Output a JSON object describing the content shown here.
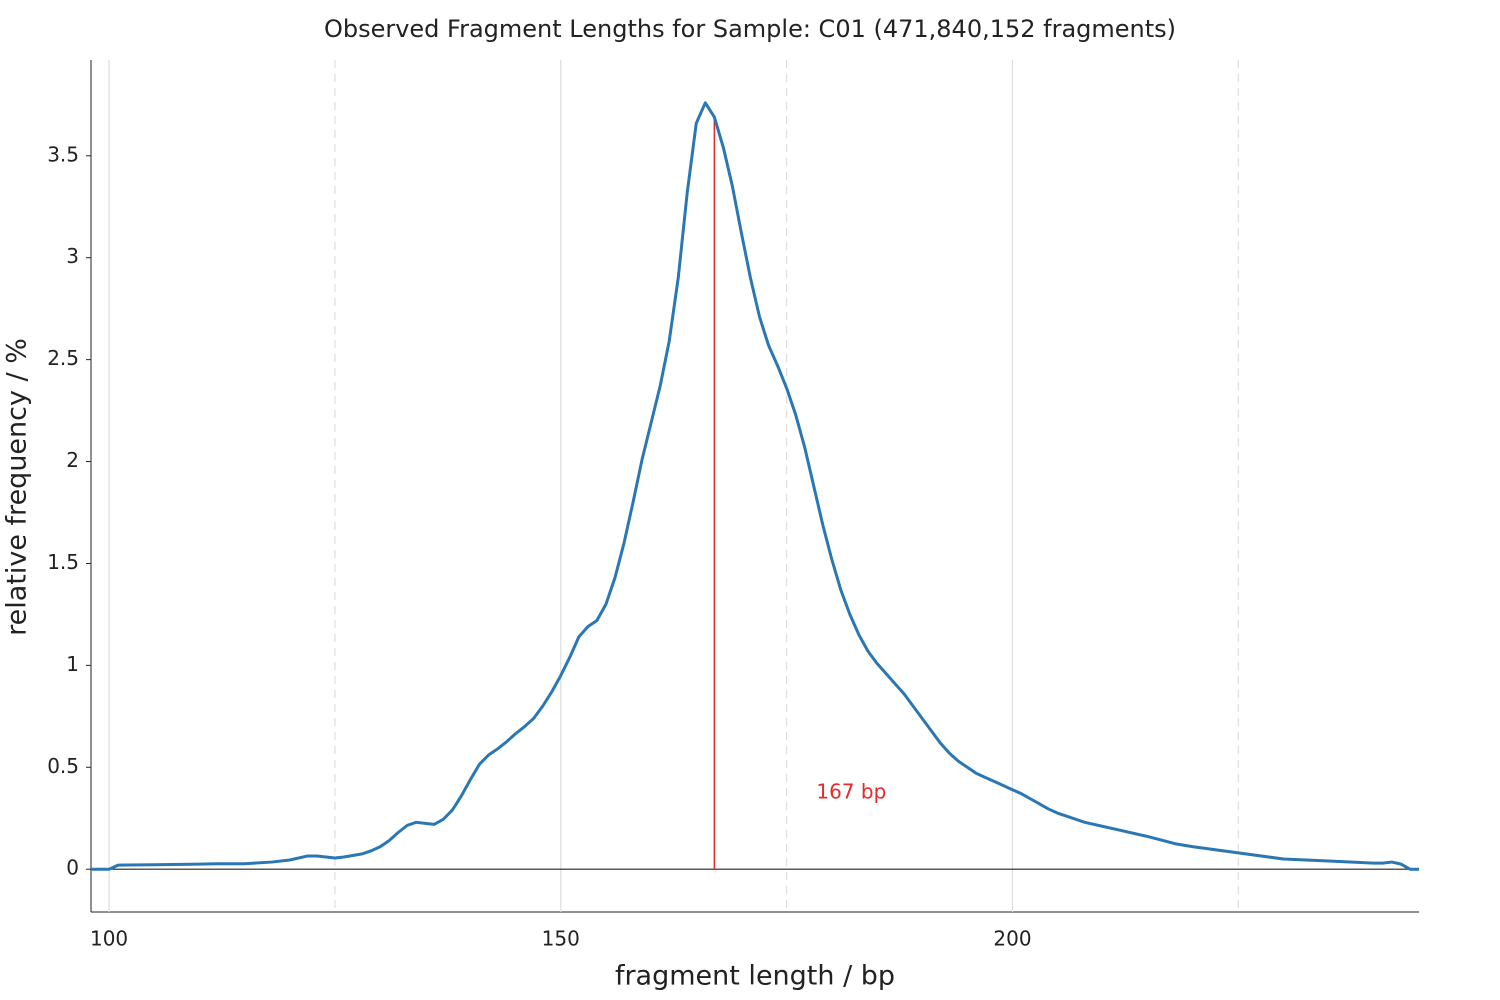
{
  "chart_data": {
    "type": "line",
    "title": "Observed Fragment Lengths for Sample: C01 (471,840,152 fragments)",
    "x_label": "fragment length / bp",
    "y_label": "relative frequency / %",
    "xlim": [
      98,
      245
    ],
    "ylim": [
      -0.21,
      3.97
    ],
    "xticks": [
      100,
      150,
      200
    ],
    "x_minor_grid": [
      125,
      175,
      225
    ],
    "yticks": [
      0,
      0.5,
      1,
      1.5,
      2,
      2.5,
      3,
      3.5
    ],
    "grid": true,
    "series": [
      {
        "name": "C01",
        "color": "#2a77b4",
        "x": [
          98,
          99,
          100,
          101,
          105,
          110,
          112,
          115,
          118,
          120,
          122,
          123,
          124,
          125,
          126,
          128,
          129,
          130,
          131,
          132,
          133,
          134,
          135,
          136,
          137,
          138,
          139,
          140,
          141,
          142,
          143,
          144,
          145,
          146,
          147,
          148,
          149,
          150,
          151,
          152,
          153,
          154,
          155,
          156,
          157,
          158,
          159,
          160,
          161,
          162,
          163,
          164,
          165,
          166,
          167,
          168,
          169,
          170,
          171,
          172,
          173,
          174,
          175,
          176,
          177,
          178,
          179,
          180,
          181,
          182,
          183,
          184,
          185,
          186,
          187,
          188,
          189,
          190,
          191,
          192,
          193,
          194,
          195,
          196,
          197,
          198,
          199,
          200,
          201,
          202,
          203,
          204,
          205,
          206,
          207,
          208,
          210,
          212,
          215,
          218,
          220,
          225,
          230,
          235,
          240,
          241,
          242,
          243,
          244,
          245
        ],
        "values": [
          0,
          0,
          0,
          0.02,
          0.022,
          0.025,
          0.027,
          0.027,
          0.035,
          0.045,
          0.065,
          0.065,
          0.06,
          0.055,
          0.06,
          0.075,
          0.09,
          0.11,
          0.14,
          0.18,
          0.215,
          0.23,
          0.225,
          0.22,
          0.245,
          0.29,
          0.36,
          0.44,
          0.515,
          0.56,
          0.59,
          0.625,
          0.665,
          0.7,
          0.74,
          0.8,
          0.87,
          0.95,
          1.04,
          1.14,
          1.19,
          1.22,
          1.3,
          1.43,
          1.6,
          1.8,
          2.01,
          2.19,
          2.37,
          2.59,
          2.9,
          3.32,
          3.66,
          3.76,
          3.69,
          3.54,
          3.35,
          3.12,
          2.9,
          2.71,
          2.57,
          2.47,
          2.36,
          2.23,
          2.07,
          1.88,
          1.69,
          1.52,
          1.37,
          1.25,
          1.15,
          1.07,
          1.01,
          0.96,
          0.91,
          0.86,
          0.8,
          0.74,
          0.68,
          0.62,
          0.57,
          0.53,
          0.5,
          0.47,
          0.45,
          0.43,
          0.41,
          0.39,
          0.37,
          0.345,
          0.32,
          0.295,
          0.275,
          0.26,
          0.245,
          0.23,
          0.21,
          0.19,
          0.16,
          0.125,
          0.11,
          0.08,
          0.05,
          0.04,
          0.03,
          0.03,
          0.035,
          0.025,
          0,
          0
        ]
      }
    ],
    "marker": {
      "x": 167,
      "label": "167 bp",
      "color": "#e8282b"
    }
  }
}
